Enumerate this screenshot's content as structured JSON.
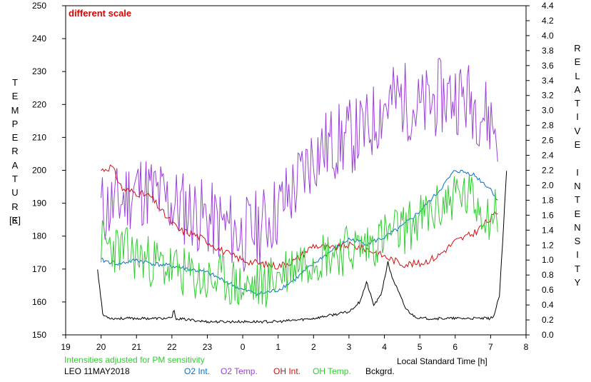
{
  "chart_data": {
    "type": "line",
    "note_scale": "different scale",
    "y_left_label": "TEMPERATURE",
    "y_left_unit": "[K]",
    "y_right_label": "RELATIVE INTENSITY",
    "x_label": "Local Standard Time [h]",
    "footnote": "Intensities adjusted for PM sensitivity",
    "station_date": "LEO 11MAY2018",
    "grid": false,
    "xlim": [
      19,
      8
    ],
    "x_ticks": [
      "19",
      "20",
      "21",
      "22",
      "23",
      "0",
      "1",
      "2",
      "3",
      "4",
      "5",
      "6",
      "7",
      "8"
    ],
    "ylim_left": [
      150,
      250
    ],
    "y_left_ticks": [
      "150",
      "160",
      "170",
      "180",
      "190",
      "200",
      "210",
      "220",
      "230",
      "240",
      "250"
    ],
    "ylim_right": [
      0.0,
      4.4
    ],
    "y_right_ticks": [
      "0.0",
      "0.2",
      "0.4",
      "0.6",
      "0.8",
      "1.0",
      "1.2",
      "1.4",
      "1.6",
      "1.8",
      "2.0",
      "2.2",
      "2.4",
      "2.6",
      "2.8",
      "3.0",
      "3.2",
      "3.4",
      "3.6",
      "3.8",
      "4.0",
      "4.2",
      "4.4"
    ],
    "series": [
      {
        "name": "O2 Int.",
        "color": "#0070d0",
        "axis": "right",
        "x": [
          20.0,
          20.5,
          21.0,
          21.5,
          22.0,
          22.5,
          23.0,
          23.5,
          24.0,
          24.5,
          25.0,
          25.5,
          26.0,
          26.5,
          27.0,
          27.5,
          28.0,
          28.5,
          29.0,
          29.5,
          30.0,
          30.5,
          31.0,
          31.2
        ],
        "y": [
          1.0,
          0.95,
          1.0,
          0.95,
          0.92,
          0.88,
          0.83,
          0.72,
          0.6,
          0.55,
          0.6,
          0.75,
          0.95,
          1.12,
          1.28,
          1.22,
          1.3,
          1.45,
          1.65,
          1.9,
          2.2,
          2.15,
          1.95,
          1.8
        ]
      },
      {
        "name": "O2 Temp.",
        "color": "#9b40d8",
        "axis": "left",
        "x": [
          20.0,
          20.5,
          21.0,
          21.5,
          22.0,
          22.5,
          23.0,
          23.5,
          24.0,
          24.5,
          25.0,
          25.5,
          26.0,
          26.5,
          27.0,
          27.5,
          28.0,
          28.5,
          29.0,
          29.5,
          30.0,
          30.5,
          31.0,
          31.2
        ],
        "y": [
          188,
          190,
          195,
          193,
          190,
          188,
          185,
          183,
          180,
          183,
          188,
          195,
          205,
          208,
          210,
          212,
          220,
          222,
          218,
          222,
          223,
          221,
          215,
          212
        ]
      },
      {
        "name": "OH Int.",
        "color": "#d01010",
        "axis": "right",
        "x": [
          20.0,
          20.3,
          20.6,
          21.0,
          21.4,
          21.8,
          22.2,
          22.6,
          23.0,
          23.5,
          24.0,
          24.5,
          25.0,
          25.5,
          26.0,
          26.5,
          27.0,
          27.5,
          28.0,
          28.5,
          29.0,
          29.5,
          30.0,
          30.5,
          31.0,
          31.2
        ],
        "y": [
          2.2,
          2.25,
          1.95,
          1.9,
          1.85,
          1.6,
          1.4,
          1.35,
          1.25,
          1.1,
          1.0,
          0.95,
          0.92,
          1.0,
          1.2,
          1.15,
          1.2,
          1.15,
          1.05,
          0.95,
          0.95,
          1.05,
          1.25,
          1.35,
          1.55,
          1.65
        ]
      },
      {
        "name": "OH Temp.",
        "color": "#33cc33",
        "axis": "left",
        "x": [
          20.0,
          20.5,
          21.0,
          21.5,
          22.0,
          22.5,
          23.0,
          23.5,
          24.0,
          24.5,
          25.0,
          25.5,
          26.0,
          26.5,
          27.0,
          27.5,
          28.0,
          28.5,
          29.0,
          29.5,
          30.0,
          30.5,
          31.0,
          31.2
        ],
        "y": [
          178,
          176,
          174,
          172,
          170,
          168,
          166,
          167,
          164,
          165,
          168,
          172,
          174,
          175,
          176,
          177,
          180,
          182,
          185,
          188,
          193,
          191,
          186,
          188
        ]
      },
      {
        "name": "Bckgrd.",
        "color": "#000000",
        "axis": "left",
        "x": [
          19.9,
          20.05,
          20.3,
          21.0,
          22.0,
          22.05,
          22.1,
          23.0,
          24.0,
          25.0,
          26.0,
          26.5,
          27.0,
          27.3,
          27.5,
          27.7,
          27.9,
          28.1,
          28.2,
          28.4,
          28.6,
          28.8,
          29.0,
          30.0,
          31.0,
          31.1,
          31.25,
          31.35,
          31.45
        ],
        "y": [
          170,
          156,
          155,
          155,
          155,
          158,
          155,
          154,
          154,
          154,
          155,
          156,
          157,
          160,
          166,
          159,
          162,
          172,
          168,
          163,
          158,
          156,
          155,
          155,
          155,
          156,
          162,
          180,
          200
        ]
      }
    ]
  }
}
